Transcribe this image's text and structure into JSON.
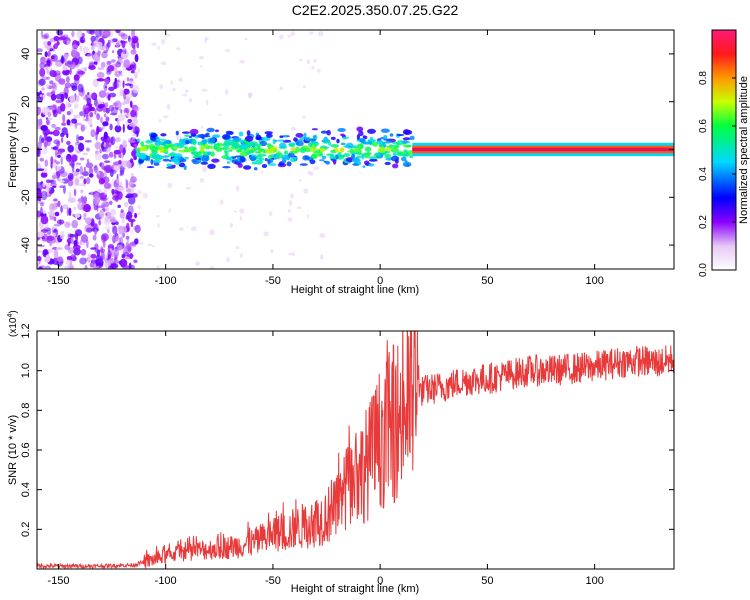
{
  "title": "C2E2.2025.350.07.25.G22",
  "colors": {
    "snr_line": "#e83a3a",
    "axis": "#000000",
    "tone": "#e0115f"
  },
  "chart_data": [
    {
      "type": "heatmap",
      "name": "spectrogram",
      "xlabel": "Height of straight line (km)",
      "ylabel": "Frequency (Hz)",
      "xlim": [
        -160,
        137
      ],
      "ylim": [
        -50,
        50
      ],
      "xticks": [
        -150,
        -100,
        -50,
        0,
        50,
        100
      ],
      "yticks": [
        -40,
        -20,
        0,
        20,
        40
      ],
      "xtick_labels": [
        "-150",
        "-100",
        "-50",
        "0",
        "50",
        "100"
      ],
      "ytick_labels": [
        "-40",
        "-20",
        "0",
        "20",
        "40"
      ],
      "colorbar": {
        "label": "Normalized spectral amplitude",
        "range": [
          0,
          1
        ],
        "ticks": [
          0.0,
          0.2,
          0.4,
          0.6,
          0.8
        ],
        "tick_labels": [
          "0.0",
          "0.2",
          "0.4",
          "0.6",
          "0.8"
        ]
      },
      "regions": [
        {
          "kind": "noise",
          "x_range": [
            -160,
            -113
          ],
          "y_range": [
            -50,
            50
          ],
          "amplitude": 0.15
        },
        {
          "kind": "band",
          "x_range": [
            -113,
            15
          ],
          "center_hz": 0,
          "width_hz": 8,
          "amplitude": 0.45
        },
        {
          "kind": "tone",
          "x_range": [
            15,
            137
          ],
          "center_hz": 0,
          "width_hz": 2,
          "amplitude": 1.0
        }
      ]
    },
    {
      "type": "line",
      "name": "snr",
      "xlabel": "Height of straight line (km)",
      "ylabel": "SNR (10 * v/v)",
      "scale_label": "(x10",
      "scale_exp": "4",
      "scale_close": ")",
      "xlim": [
        -160,
        137
      ],
      "ylim": [
        0,
        1.2
      ],
      "xticks": [
        -150,
        -100,
        -50,
        0,
        50,
        100
      ],
      "yticks": [
        0.2,
        0.4,
        0.6,
        0.8,
        1.0,
        1.2
      ],
      "xtick_labels": [
        "-150",
        "-100",
        "-50",
        "0",
        "50",
        "100"
      ],
      "ytick_labels": [
        "0.2",
        "0.4",
        "0.6",
        "0.8",
        "1.0",
        "1.2"
      ],
      "envelope_x": [
        -160,
        -130,
        -115,
        -105,
        -95,
        -80,
        -70,
        -60,
        -50,
        -40,
        -30,
        -20,
        -15,
        -10,
        -5,
        0,
        5,
        10,
        15,
        20,
        30,
        40,
        50,
        60,
        70,
        80,
        90,
        100,
        110,
        120,
        130,
        137
      ],
      "envelope_y": [
        0.015,
        0.015,
        0.02,
        0.05,
        0.08,
        0.1,
        0.11,
        0.13,
        0.17,
        0.2,
        0.24,
        0.3,
        0.42,
        0.48,
        0.55,
        0.66,
        0.72,
        0.78,
        0.86,
        0.9,
        0.92,
        0.95,
        0.96,
        0.98,
        1.0,
        1.0,
        1.01,
        1.02,
        1.04,
        1.05,
        1.04,
        1.06
      ],
      "noise_amplitude": 0.08
    }
  ]
}
